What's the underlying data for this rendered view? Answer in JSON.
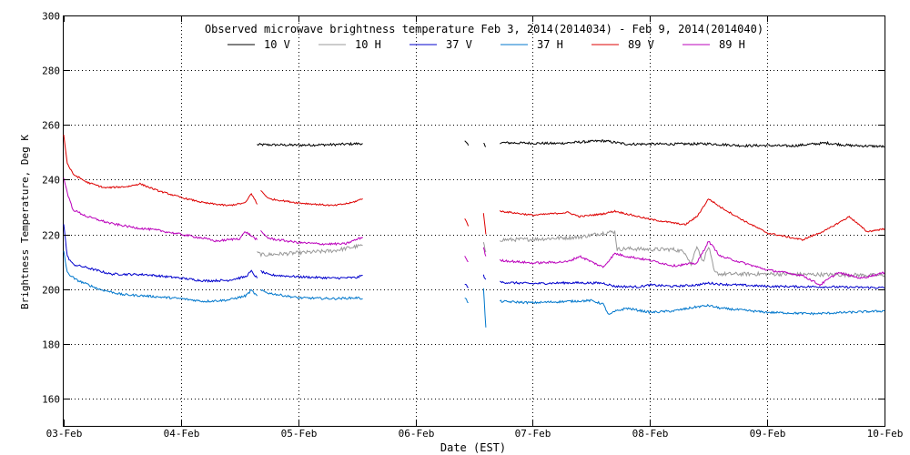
{
  "chart_data": {
    "type": "line",
    "title": "Observed microwave brightness temperature Feb  3, 2014(2014034) - Feb  9, 2014(2014040)",
    "xlabel": "Date (EST)",
    "ylabel": "Brightness Temperature, Deg K",
    "xlim": [
      0,
      7
    ],
    "ylim": [
      150,
      300
    ],
    "grid": true,
    "legend_position": "top",
    "x_ticks": [
      {
        "value": 0,
        "label": "03-Feb"
      },
      {
        "value": 1,
        "label": "04-Feb"
      },
      {
        "value": 2,
        "label": "05-Feb"
      },
      {
        "value": 3,
        "label": "06-Feb"
      },
      {
        "value": 4,
        "label": "07-Feb"
      },
      {
        "value": 5,
        "label": "08-Feb"
      },
      {
        "value": 6,
        "label": "09-Feb"
      },
      {
        "value": 7,
        "label": "10-Feb"
      }
    ],
    "y_ticks": [
      160,
      180,
      200,
      220,
      240,
      260,
      280,
      300
    ],
    "series": [
      {
        "name": "10 V",
        "color": "#000000",
        "noise": 0.45,
        "segments": [
          [
            [
              1.65,
              252.8
            ],
            [
              2.0,
              252.6
            ],
            [
              2.3,
              252.8
            ],
            [
              2.55,
              253.2
            ]
          ],
          [
            [
              3.42,
              254.0
            ],
            [
              3.45,
              252.5
            ]
          ],
          [
            [
              3.58,
              253.2
            ],
            [
              3.6,
              252.0
            ]
          ],
          [
            [
              3.72,
              253.5
            ],
            [
              4.2,
              253.2
            ],
            [
              4.6,
              254.2
            ],
            [
              4.8,
              253.0
            ],
            [
              5.2,
              253.0
            ],
            [
              5.5,
              253.1
            ],
            [
              5.8,
              252.4
            ],
            [
              6.0,
              252.5
            ],
            [
              6.2,
              252.3
            ],
            [
              6.5,
              253.4
            ],
            [
              6.7,
              252.5
            ],
            [
              7.0,
              252.1
            ]
          ]
        ]
      },
      {
        "name": "10 H",
        "color": "#999999",
        "noise": 0.7,
        "segments": [
          [
            [
              1.65,
              213.2
            ],
            [
              1.7,
              212.5
            ],
            [
              2.0,
              213.2
            ],
            [
              2.3,
              214.0
            ],
            [
              2.55,
              216.0
            ]
          ],
          [
            [
              3.58,
              216.5
            ],
            [
              3.6,
              213.5
            ]
          ],
          [
            [
              3.72,
              218.0
            ],
            [
              4.0,
              218.2
            ],
            [
              4.4,
              219.0
            ],
            [
              4.6,
              220.5
            ],
            [
              4.7,
              221.0
            ],
            [
              4.72,
              214.5
            ],
            [
              4.8,
              214.8
            ],
            [
              5.0,
              214.5
            ],
            [
              5.2,
              214.5
            ],
            [
              5.3,
              213.5
            ],
            [
              5.35,
              209.0
            ],
            [
              5.4,
              216.0
            ],
            [
              5.45,
              210.0
            ],
            [
              5.5,
              215.5
            ],
            [
              5.55,
              206.0
            ],
            [
              5.6,
              205.5
            ],
            [
              6.0,
              205.5
            ],
            [
              6.5,
              205.3
            ],
            [
              7.0,
              205.0
            ]
          ]
        ]
      },
      {
        "name": "37 V",
        "color": "#0000cc",
        "noise": 0.4,
        "segments": [
          [
            [
              0.0,
              224.0
            ],
            [
              0.03,
              212.0
            ],
            [
              0.08,
              209.0
            ],
            [
              0.2,
              207.8
            ],
            [
              0.4,
              205.5
            ],
            [
              0.7,
              205.3
            ],
            [
              1.0,
              204.0
            ],
            [
              1.2,
              203.0
            ],
            [
              1.4,
              203.2
            ],
            [
              1.55,
              204.5
            ],
            [
              1.6,
              206.5
            ],
            [
              1.65,
              204.0
            ]
          ],
          [
            [
              1.68,
              206.5
            ],
            [
              1.75,
              205.2
            ],
            [
              2.0,
              204.5
            ],
            [
              2.3,
              204.0
            ],
            [
              2.5,
              204.2
            ],
            [
              2.55,
              205.0
            ]
          ],
          [
            [
              3.42,
              202.0
            ],
            [
              3.45,
              200.5
            ]
          ],
          [
            [
              3.58,
              205.0
            ],
            [
              3.6,
              203.5
            ]
          ],
          [
            [
              3.72,
              202.5
            ],
            [
              4.0,
              202.0
            ],
            [
              4.3,
              202.3
            ],
            [
              4.6,
              202.2
            ],
            [
              4.7,
              201.0
            ],
            [
              4.9,
              200.8
            ],
            [
              5.0,
              201.5
            ],
            [
              5.2,
              201.0
            ],
            [
              5.4,
              201.5
            ],
            [
              5.5,
              202.2
            ],
            [
              5.6,
              201.8
            ],
            [
              6.0,
              201.0
            ],
            [
              6.5,
              200.8
            ],
            [
              7.0,
              200.5
            ]
          ]
        ]
      },
      {
        "name": "37 H",
        "color": "#0077cc",
        "noise": 0.4,
        "segments": [
          [
            [
              0.0,
              214.0
            ],
            [
              0.03,
              206.0
            ],
            [
              0.1,
              203.5
            ],
            [
              0.3,
              200.0
            ],
            [
              0.5,
              198.0
            ],
            [
              0.7,
              197.5
            ],
            [
              1.0,
              196.5
            ],
            [
              1.2,
              195.5
            ],
            [
              1.4,
              196.0
            ],
            [
              1.55,
              197.5
            ],
            [
              1.6,
              199.5
            ],
            [
              1.65,
              197.5
            ]
          ],
          [
            [
              1.68,
              199.5
            ],
            [
              1.75,
              198.5
            ],
            [
              2.0,
              196.8
            ],
            [
              2.3,
              196.5
            ],
            [
              2.5,
              196.8
            ],
            [
              2.55,
              196.5
            ]
          ],
          [
            [
              3.42,
              197.0
            ],
            [
              3.45,
              195.0
            ]
          ],
          [
            [
              3.58,
              200.0
            ],
            [
              3.6,
              186.0
            ]
          ],
          [
            [
              3.72,
              195.5
            ],
            [
              4.0,
              195.0
            ],
            [
              4.3,
              195.5
            ],
            [
              4.5,
              195.8
            ],
            [
              4.6,
              194.5
            ],
            [
              4.65,
              190.5
            ],
            [
              4.7,
              191.8
            ],
            [
              4.8,
              193.0
            ],
            [
              5.0,
              191.5
            ],
            [
              5.2,
              192.0
            ],
            [
              5.4,
              193.5
            ],
            [
              5.5,
              194.0
            ],
            [
              5.6,
              193.0
            ],
            [
              6.0,
              191.5
            ],
            [
              6.4,
              191.0
            ],
            [
              7.0,
              192.0
            ]
          ]
        ]
      },
      {
        "name": "89 V",
        "color": "#dd0000",
        "noise": 0.3,
        "segments": [
          [
            [
              0.0,
              256.5
            ],
            [
              0.03,
              246.0
            ],
            [
              0.08,
              242.0
            ],
            [
              0.2,
              239.0
            ],
            [
              0.35,
              237.0
            ],
            [
              0.55,
              237.5
            ],
            [
              0.65,
              238.5
            ],
            [
              0.8,
              236.0
            ],
            [
              1.0,
              233.5
            ],
            [
              1.2,
              231.5
            ],
            [
              1.4,
              230.5
            ],
            [
              1.55,
              231.5
            ],
            [
              1.6,
              235.0
            ],
            [
              1.65,
              231.0
            ]
          ],
          [
            [
              1.68,
              236.0
            ],
            [
              1.75,
              233.0
            ],
            [
              2.0,
              231.5
            ],
            [
              2.3,
              230.5
            ],
            [
              2.45,
              231.5
            ],
            [
              2.55,
              233.0
            ]
          ],
          [
            [
              3.42,
              226.0
            ],
            [
              3.45,
              223.0
            ]
          ],
          [
            [
              3.58,
              228.0
            ],
            [
              3.6,
              220.0
            ]
          ],
          [
            [
              3.72,
              228.5
            ],
            [
              4.0,
              227.0
            ],
            [
              4.3,
              228.0
            ],
            [
              4.4,
              226.5
            ],
            [
              4.6,
              227.5
            ],
            [
              4.7,
              228.5
            ],
            [
              4.8,
              227.5
            ],
            [
              5.0,
              225.5
            ],
            [
              5.3,
              223.5
            ],
            [
              5.4,
              226.5
            ],
            [
              5.5,
              233.0
            ],
            [
              5.6,
              230.0
            ],
            [
              5.8,
              225.0
            ],
            [
              6.0,
              220.5
            ],
            [
              6.3,
              218.0
            ],
            [
              6.5,
              221.5
            ],
            [
              6.7,
              226.5
            ],
            [
              6.85,
              221.0
            ],
            [
              7.0,
              222.0
            ]
          ]
        ]
      },
      {
        "name": "89 H",
        "color": "#bb00bb",
        "noise": 0.4,
        "segments": [
          [
            [
              0.0,
              241.0
            ],
            [
              0.03,
              235.0
            ],
            [
              0.08,
              229.0
            ],
            [
              0.2,
              226.5
            ],
            [
              0.4,
              224.0
            ],
            [
              0.6,
              222.5
            ],
            [
              0.8,
              221.5
            ],
            [
              1.0,
              220.0
            ],
            [
              1.2,
              218.5
            ],
            [
              1.3,
              217.5
            ],
            [
              1.5,
              218.5
            ],
            [
              1.55,
              221.0
            ],
            [
              1.6,
              219.5
            ],
            [
              1.65,
              218.0
            ]
          ],
          [
            [
              1.68,
              221.0
            ],
            [
              1.75,
              218.5
            ],
            [
              2.0,
              217.0
            ],
            [
              2.2,
              216.5
            ],
            [
              2.4,
              216.5
            ],
            [
              2.55,
              219.0
            ]
          ],
          [
            [
              3.42,
              212.0
            ],
            [
              3.45,
              210.0
            ]
          ],
          [
            [
              3.58,
              215.0
            ],
            [
              3.6,
              212.0
            ]
          ],
          [
            [
              3.72,
              210.5
            ],
            [
              4.0,
              209.5
            ],
            [
              4.3,
              210.0
            ],
            [
              4.4,
              212.0
            ],
            [
              4.6,
              208.0
            ],
            [
              4.7,
              213.0
            ],
            [
              4.8,
              212.0
            ],
            [
              5.0,
              210.5
            ],
            [
              5.2,
              208.5
            ],
            [
              5.4,
              209.5
            ],
            [
              5.5,
              217.5
            ],
            [
              5.6,
              212.0
            ],
            [
              5.8,
              209.5
            ],
            [
              6.0,
              207.0
            ],
            [
              6.3,
              205.0
            ],
            [
              6.45,
              201.5
            ],
            [
              6.6,
              206.0
            ],
            [
              6.8,
              204.0
            ],
            [
              7.0,
              206.0
            ]
          ]
        ]
      }
    ]
  }
}
